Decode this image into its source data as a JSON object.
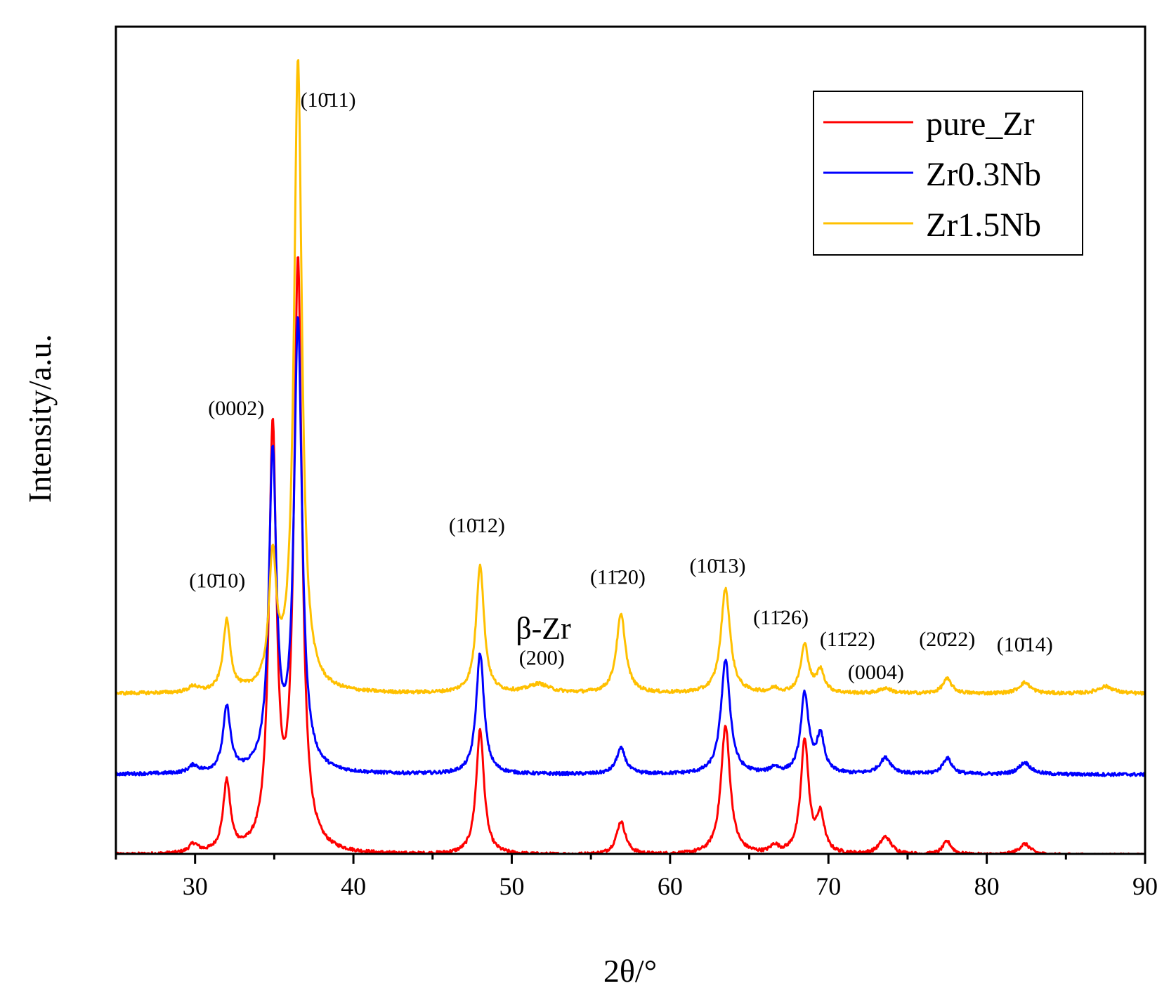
{
  "chart_data": {
    "type": "line",
    "title": "",
    "xlabel": "2θ/°",
    "ylabel": "Intensity/a.u.",
    "xlim": [
      25,
      90
    ],
    "ylim": [
      0,
      110
    ],
    "xticks": [
      30,
      40,
      50,
      60,
      70,
      80,
      90
    ],
    "x_minor_step": 5,
    "y_tick_labels": false,
    "legend_position": "top-right",
    "series": [
      {
        "name": "pure_Zr",
        "color": "#ff0000",
        "baseline": 0,
        "peaks": [
          {
            "x": 29.9,
            "h": 1.2,
            "w": 0.35
          },
          {
            "x": 32.0,
            "h": 9.5,
            "w": 0.28
          },
          {
            "x": 34.9,
            "h": 57.0,
            "w": 0.28
          },
          {
            "x": 36.5,
            "h": 80.0,
            "w": 0.3
          },
          {
            "x": 48.0,
            "h": 17.0,
            "w": 0.3
          },
          {
            "x": 56.9,
            "h": 4.5,
            "w": 0.35
          },
          {
            "x": 63.5,
            "h": 17.5,
            "w": 0.35
          },
          {
            "x": 66.6,
            "h": 1.0,
            "w": 0.3
          },
          {
            "x": 68.5,
            "h": 15.5,
            "w": 0.3
          },
          {
            "x": 69.5,
            "h": 5.0,
            "w": 0.3
          },
          {
            "x": 73.6,
            "h": 2.4,
            "w": 0.45
          },
          {
            "x": 77.5,
            "h": 1.8,
            "w": 0.35
          },
          {
            "x": 82.4,
            "h": 1.5,
            "w": 0.45
          }
        ]
      },
      {
        "name": "Zr0.3Nb",
        "color": "#0000ff",
        "baseline": 11,
        "peaks": [
          {
            "x": 29.9,
            "h": 1.0,
            "w": 0.35
          },
          {
            "x": 32.0,
            "h": 8.8,
            "w": 0.28
          },
          {
            "x": 34.9,
            "h": 43.0,
            "w": 0.28
          },
          {
            "x": 36.5,
            "h": 61.0,
            "w": 0.3
          },
          {
            "x": 48.0,
            "h": 16.5,
            "w": 0.3
          },
          {
            "x": 56.9,
            "h": 3.5,
            "w": 0.35
          },
          {
            "x": 63.5,
            "h": 15.5,
            "w": 0.35
          },
          {
            "x": 66.6,
            "h": 0.8,
            "w": 0.3
          },
          {
            "x": 68.5,
            "h": 10.8,
            "w": 0.3
          },
          {
            "x": 69.5,
            "h": 5.0,
            "w": 0.3
          },
          {
            "x": 73.6,
            "h": 2.2,
            "w": 0.45
          },
          {
            "x": 77.5,
            "h": 2.2,
            "w": 0.35
          },
          {
            "x": 82.4,
            "h": 1.6,
            "w": 0.45
          }
        ]
      },
      {
        "name": "Zr1.5Nb",
        "color": "#ffc000",
        "baseline": 22,
        "peaks": [
          {
            "x": 29.9,
            "h": 0.8,
            "w": 0.35
          },
          {
            "x": 32.0,
            "h": 9.6,
            "w": 0.28
          },
          {
            "x": 34.9,
            "h": 17.5,
            "w": 0.28
          },
          {
            "x": 36.5,
            "h": 86.0,
            "w": 0.3
          },
          {
            "x": 48.0,
            "h": 17.5,
            "w": 0.3
          },
          {
            "x": 51.7,
            "h": 1.2,
            "w": 0.8
          },
          {
            "x": 56.9,
            "h": 10.7,
            "w": 0.35
          },
          {
            "x": 63.5,
            "h": 14.3,
            "w": 0.35
          },
          {
            "x": 66.6,
            "h": 0.6,
            "w": 0.3
          },
          {
            "x": 68.5,
            "h": 6.5,
            "w": 0.3
          },
          {
            "x": 69.5,
            "h": 3.0,
            "w": 0.3
          },
          {
            "x": 73.6,
            "h": 0.7,
            "w": 0.45
          },
          {
            "x": 77.5,
            "h": 2.0,
            "w": 0.35
          },
          {
            "x": 82.4,
            "h": 1.5,
            "w": 0.45
          },
          {
            "x": 87.5,
            "h": 1.0,
            "w": 0.6
          }
        ]
      }
    ],
    "annotations": [
      {
        "text": "(10̄10)",
        "x": 31.4,
        "y": 36.5
      },
      {
        "text": "(0002)",
        "x": 32.6,
        "y": 60.0
      },
      {
        "text": "(10̄11)",
        "x": 38.4,
        "y": 102.0
      },
      {
        "text": "(10̄12)",
        "x": 47.8,
        "y": 44.0
      },
      {
        "text": "(11̄20)",
        "x": 56.7,
        "y": 37.0
      },
      {
        "text": "(10̄13)",
        "x": 63.0,
        "y": 38.5
      },
      {
        "text": "(11̄26)",
        "x": 67.0,
        "y": 31.5
      },
      {
        "text": "(11̄22)",
        "x": 71.2,
        "y": 28.5
      },
      {
        "text": "(0004)",
        "x": 73.0,
        "y": 24.0
      },
      {
        "text": "(20̄22)",
        "x": 77.5,
        "y": 28.5
      },
      {
        "text": "(10̄14)",
        "x": 82.4,
        "y": 27.8
      },
      {
        "text": "β-Zr",
        "x": 52.0,
        "y": 29.5,
        "big": true
      },
      {
        "text": "(200)",
        "x": 51.9,
        "y": 26.0
      }
    ]
  }
}
